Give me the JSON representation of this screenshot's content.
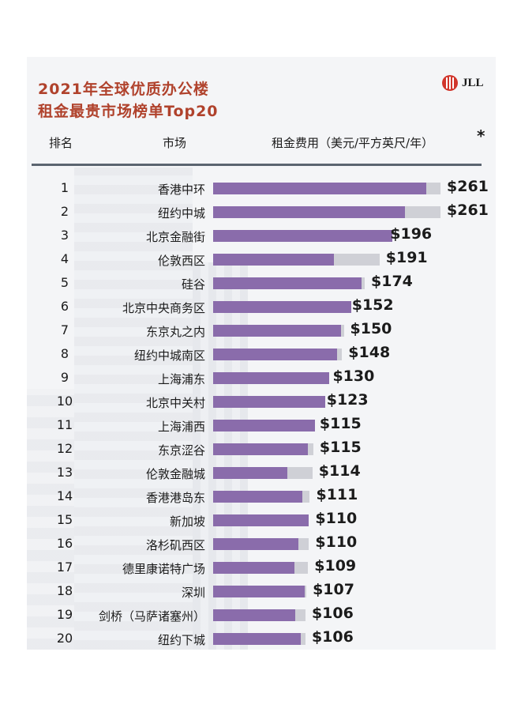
{
  "header": {
    "title_line1": "2021年全球优质办公楼",
    "title_line2": "租金最贵市场榜单Top20",
    "logo_text": "JLL",
    "col_rank": "排名",
    "col_market": "市场",
    "col_rent": "租金费用（美元/平方英尺/年）",
    "asterisk": "*"
  },
  "colors": {
    "title": "#b0422c",
    "bar_primary": "#8a6cab",
    "bar_secondary": "#cfd0d6",
    "logo": "#d1352b"
  },
  "chart_data": {
    "type": "bar",
    "orientation": "horizontal",
    "series": [
      {
        "name": "",
        "values": [
          245,
          220,
          206,
          139,
          170,
          159,
          147,
          142,
          133,
          129,
          117,
          109,
          85,
          102,
          110,
          98,
          93,
          105,
          94,
          101
        ]
      },
      {
        "name": "",
        "values": [
          261,
          261,
          196,
          191,
          174,
          152,
          150,
          148,
          130,
          123,
          115,
          115,
          114,
          111,
          110,
          110,
          109,
          107,
          106,
          106
        ]
      }
    ],
    "rows": [
      {
        "rank": "1",
        "market": "香港中环",
        "label": "$261"
      },
      {
        "rank": "2",
        "market": "纽约中城",
        "label": "$261"
      },
      {
        "rank": "3",
        "market": "北京金融街",
        "label": "$196"
      },
      {
        "rank": "4",
        "market": "伦敦西区",
        "label": "$191"
      },
      {
        "rank": "5",
        "market": "硅谷",
        "label": "$174"
      },
      {
        "rank": "6",
        "market": "北京中央商务区",
        "label": "$152"
      },
      {
        "rank": "7",
        "market": "东京丸之内",
        "label": "$150"
      },
      {
        "rank": "8",
        "market": "纽约中城南区",
        "label": "$148"
      },
      {
        "rank": "9",
        "market": "上海浦东",
        "label": "$130"
      },
      {
        "rank": "10",
        "market": "北京中关村",
        "label": "$123"
      },
      {
        "rank": "11",
        "market": "上海浦西",
        "label": "$115"
      },
      {
        "rank": "12",
        "market": "东京涩谷",
        "label": "$115"
      },
      {
        "rank": "13",
        "market": "伦敦金融城",
        "label": "$114"
      },
      {
        "rank": "14",
        "market": "香港港岛东",
        "label": "$111"
      },
      {
        "rank": "15",
        "market": "新加坡",
        "label": "$110"
      },
      {
        "rank": "16",
        "market": "洛杉矶西区",
        "label": "$110"
      },
      {
        "rank": "17",
        "market": "德里康诺特广场",
        "label": "$109"
      },
      {
        "rank": "18",
        "market": "深圳",
        "label": "$107"
      },
      {
        "rank": "19",
        "market": "剑桥（马萨诸塞州）",
        "label": "$106"
      },
      {
        "rank": "20",
        "market": "纽约下城",
        "label": "$106"
      }
    ],
    "xlim": [
      0,
      261
    ]
  }
}
